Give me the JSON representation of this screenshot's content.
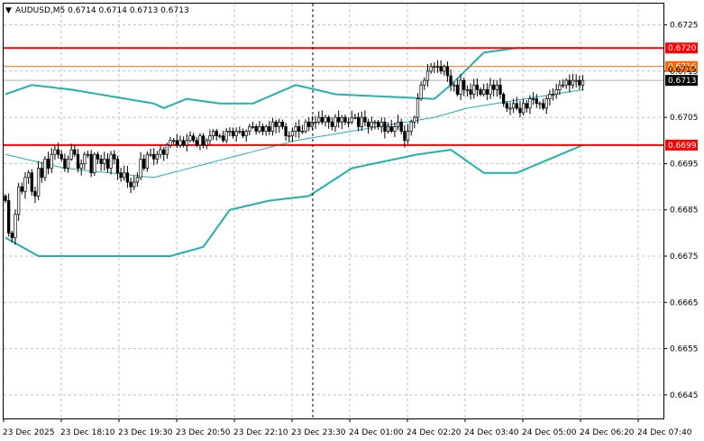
{
  "chart_data": {
    "type": "candlestick",
    "title": "AUDUSD,M5  0.6714 0.6714 0.6713 0.6713",
    "title_symbol_marker": "▼",
    "grid": true,
    "ylim": [
      0.664,
      0.673
    ],
    "y_ticks": [
      "0.6725",
      "0.6715",
      "0.6705",
      "0.6695",
      "0.6685",
      "0.6675",
      "0.6665",
      "0.6655",
      "0.6645"
    ],
    "x_ticks": [
      "23 Dec 2025",
      "23 Dec 18:10",
      "23 Dec 19:30",
      "23 Dec 20:50",
      "23 Dec 22:10",
      "23 Dec 23:30",
      "24 Dec 01:00",
      "24 Dec 02:20",
      "24 Dec 03:40",
      "24 Dec 05:00",
      "24 Dec 06:20",
      "24 Dec 07:40"
    ],
    "bar_count": 176,
    "vertical_marker_bar": 85,
    "horizontal_levels": [
      {
        "value": 0.672,
        "label": "0.6720",
        "color": "#ff0000"
      },
      {
        "value": 0.6699,
        "label": "0.6699",
        "color": "#ff0000"
      },
      {
        "value": 0.6716,
        "label": "0.6716",
        "color": "#ff6a00"
      }
    ],
    "current_price": {
      "value": 0.6713,
      "label": "0.6713"
    },
    "partially_hidden_label": "0.6715",
    "candles": {
      "bullish_color": "#ffffff",
      "bearish_color": "#000000",
      "outline_color": "#000000",
      "closes": [
        0.6687,
        0.668,
        0.6679,
        0.6684,
        0.669,
        0.6689,
        0.6692,
        0.6693,
        0.6689,
        0.6688,
        0.6694,
        0.6692,
        0.6696,
        0.6694,
        0.6697,
        0.6698,
        0.6697,
        0.6696,
        0.6694,
        0.6696,
        0.6698,
        0.6697,
        0.6694,
        0.6695,
        0.6697,
        0.6697,
        0.6693,
        0.6697,
        0.6696,
        0.6695,
        0.6696,
        0.6694,
        0.6697,
        0.6696,
        0.6693,
        0.6692,
        0.6693,
        0.6691,
        0.669,
        0.6691,
        0.6692,
        0.6696,
        0.6694,
        0.6697,
        0.6697,
        0.6696,
        0.6697,
        0.6698,
        0.6697,
        0.6699,
        0.67,
        0.67,
        0.6699,
        0.67,
        0.6699,
        0.67,
        0.6701,
        0.67,
        0.6699,
        0.6701,
        0.6699,
        0.67,
        0.6701,
        0.6702,
        0.6701,
        0.6701,
        0.67,
        0.6702,
        0.6702,
        0.6701,
        0.6702,
        0.6702,
        0.6701,
        0.6702,
        0.6703,
        0.6703,
        0.6702,
        0.6703,
        0.6702,
        0.6703,
        0.6702,
        0.6704,
        0.6703,
        0.6704,
        0.6703,
        0.6701,
        0.6701,
        0.6702,
        0.6703,
        0.6702,
        0.6702,
        0.6704,
        0.6703,
        0.6704,
        0.6704,
        0.6705,
        0.6704,
        0.6705,
        0.6704,
        0.6703,
        0.6705,
        0.6704,
        0.6705,
        0.6704,
        0.6704,
        0.6705,
        0.6705,
        0.6703,
        0.6705,
        0.6704,
        0.6703,
        0.6704,
        0.6704,
        0.6703,
        0.6704,
        0.6702,
        0.6703,
        0.6702,
        0.6703,
        0.6704,
        0.6702,
        0.67,
        0.6702,
        0.6704,
        0.6705,
        0.6709,
        0.6712,
        0.6713,
        0.6715,
        0.6716,
        0.6716,
        0.6716,
        0.6715,
        0.6716,
        0.6714,
        0.6712,
        0.6712,
        0.671,
        0.6713,
        0.6711,
        0.6711,
        0.671,
        0.6712,
        0.6711,
        0.671,
        0.6711,
        0.671,
        0.6712,
        0.6711,
        0.6712,
        0.671,
        0.6708,
        0.6707,
        0.6707,
        0.6708,
        0.6707,
        0.6706,
        0.6708,
        0.6707,
        0.6709,
        0.6709,
        0.6708,
        0.6708,
        0.6707,
        0.6709,
        0.671,
        0.671,
        0.6711,
        0.6712,
        0.6712,
        0.6713,
        0.6712,
        0.6713,
        0.6713,
        0.6712,
        0.6713
      ]
    },
    "bollinger_bands": {
      "color": "#20b2aa",
      "upper_anchors": [
        [
          0,
          0.671
        ],
        [
          8,
          0.6712
        ],
        [
          20,
          0.6711
        ],
        [
          45,
          0.6708
        ],
        [
          48,
          0.6707
        ],
        [
          55,
          0.6709
        ],
        [
          65,
          0.6708
        ],
        [
          75,
          0.6708
        ],
        [
          88,
          0.6712
        ],
        [
          100,
          0.671
        ],
        [
          130,
          0.6709
        ],
        [
          135,
          0.6712
        ],
        [
          145,
          0.6719
        ],
        [
          155,
          0.672
        ],
        [
          175,
          0.672
        ]
      ],
      "middle_anchors": [
        [
          0,
          0.6697
        ],
        [
          18,
          0.6694
        ],
        [
          45,
          0.6692
        ],
        [
          88,
          0.67
        ],
        [
          130,
          0.6705
        ],
        [
          140,
          0.6707
        ],
        [
          175,
          0.6711
        ]
      ],
      "lower_anchors": [
        [
          0,
          0.6679
        ],
        [
          10,
          0.6675
        ],
        [
          50,
          0.6675
        ],
        [
          60,
          0.6677
        ],
        [
          68,
          0.6685
        ],
        [
          80,
          0.6687
        ],
        [
          92,
          0.6688
        ],
        [
          105,
          0.6694
        ],
        [
          125,
          0.6697
        ],
        [
          135,
          0.6698
        ],
        [
          145,
          0.6693
        ],
        [
          155,
          0.6693
        ],
        [
          175,
          0.6699
        ]
      ]
    }
  }
}
